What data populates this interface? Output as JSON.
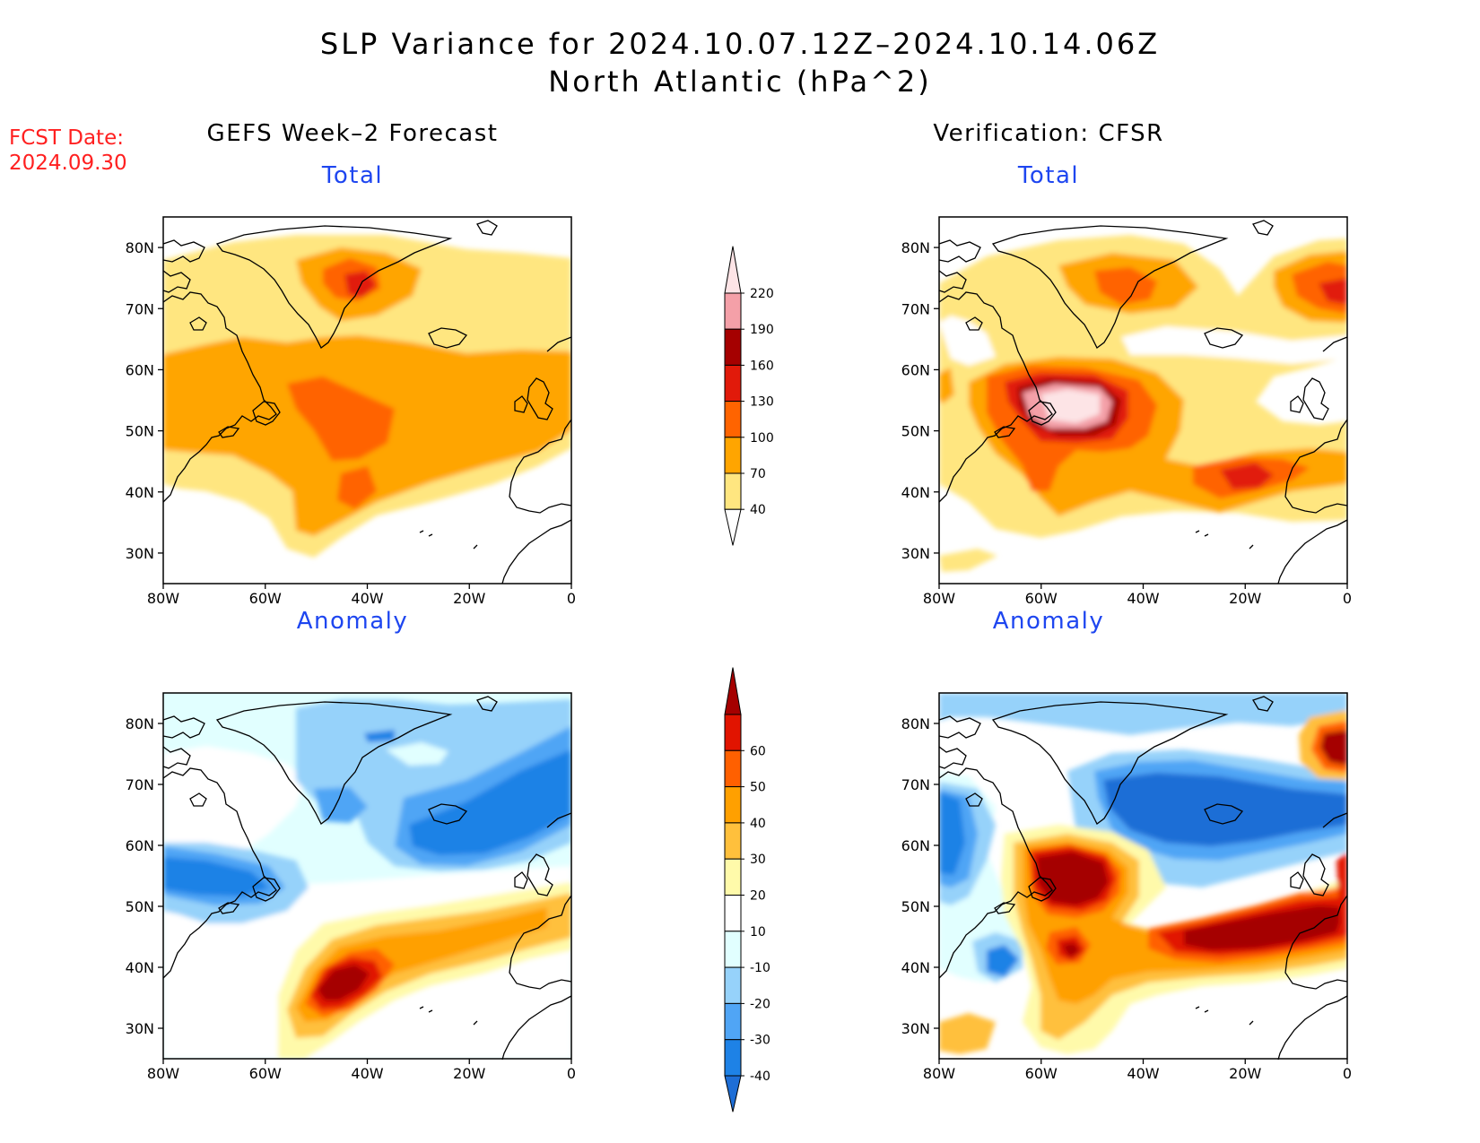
{
  "header": {
    "title_line1": "SLP Variance for 2024.10.07.12Z–2024.10.14.06Z",
    "title_line2": "North Atlantic (hPa^2)",
    "fcst_label": "FCST Date:",
    "fcst_date": "2024.09.30"
  },
  "columns": {
    "left": "GEFS Week–2 Forecast",
    "right": "Verification: CFSR"
  },
  "panel_titles": {
    "total": "Total",
    "anomaly": "Anomaly"
  },
  "axes": {
    "lat_ticks": [
      "30N",
      "40N",
      "50N",
      "60N",
      "70N",
      "80N"
    ],
    "lon_ticks": [
      "80W",
      "60W",
      "40W",
      "20W",
      "0"
    ],
    "lat_range": [
      25,
      85
    ],
    "lon_range": [
      -80,
      0
    ]
  },
  "colorbars": {
    "total": {
      "levels": [
        "40",
        "70",
        "100",
        "130",
        "160",
        "190",
        "220"
      ],
      "colors": [
        "#ffffff",
        "#ffe680",
        "#ffa500",
        "#ff6400",
        "#e11a0a",
        "#a50000",
        "#f4a0a8",
        "#fde4e6"
      ]
    },
    "anomaly": {
      "levels": [
        "-40",
        "-30",
        "-20",
        "-10",
        "10",
        "20",
        "30",
        "40",
        "50",
        "60"
      ],
      "colors": [
        "#1e6ed6",
        "#1e82e6",
        "#50a5f5",
        "#96d2fa",
        "#e1ffff",
        "#ffffff",
        "#fffaaa",
        "#ffc03c",
        "#ffa000",
        "#ff6000",
        "#e11400",
        "#a50000"
      ]
    }
  }
}
